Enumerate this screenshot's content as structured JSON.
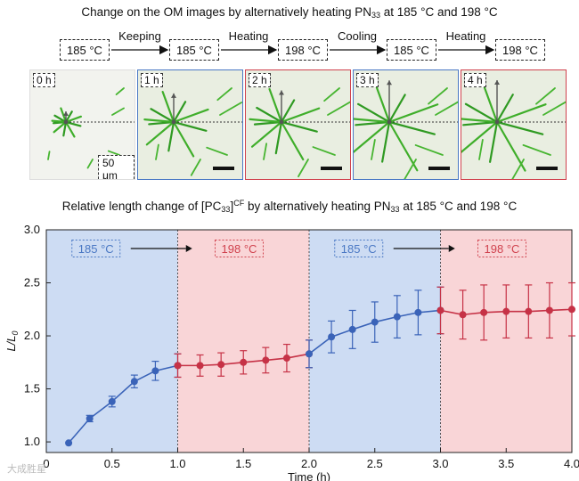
{
  "top_title": {
    "prefix": "Change on the OM images by alternatively heating PN",
    "sub": "33",
    "suffix": " at 185 °C and 198 °C"
  },
  "process_steps": {
    "boxes": [
      {
        "label": "185 °C",
        "color": "#222222"
      },
      {
        "label": "185 °C",
        "color": "#4a78c4"
      },
      {
        "label": "198 °C",
        "color": "#d0424e"
      },
      {
        "label": "185 °C",
        "color": "#4a78c4"
      },
      {
        "label": "198 °C",
        "color": "#d0424e"
      }
    ],
    "arrows": [
      "Keeping",
      "Heating",
      "Cooling",
      "Heating"
    ]
  },
  "om_images": {
    "panels": [
      {
        "time": "0 h",
        "border": "#dddddd",
        "growth": 0.0
      },
      {
        "time": "1 h",
        "border": "#4a78c4",
        "growth": 0.72
      },
      {
        "time": "2 h",
        "border": "#d0424e",
        "growth": 0.84
      },
      {
        "time": "3 h",
        "border": "#4a78c4",
        "growth": 1.24
      },
      {
        "time": "4 h",
        "border": "#d0424e",
        "growth": 1.25
      }
    ],
    "scale_bar": "50 μm"
  },
  "chart_title": {
    "prefix": "Relative length change of [PC",
    "sub": "33",
    "mid": "]",
    "sup": "CF",
    "suffix_a": " by alternatively heating PN",
    "sub2": "33",
    "suffix_b": " at 185 °C and 198 °C"
  },
  "chart_data": {
    "type": "scatter",
    "xlabel": "Time (h)",
    "ylabel": "L/L",
    "ylabel_sub": "0",
    "xlim": [
      0,
      4
    ],
    "ylim": [
      0.9,
      3.0
    ],
    "xticks": [
      "0",
      "0.5",
      "1.0",
      "1.5",
      "2.0",
      "2.5",
      "3.0",
      "3.5",
      "4.0"
    ],
    "yticks": [
      "1.0",
      "1.5",
      "2.0",
      "2.5",
      "3.0"
    ],
    "regions": [
      {
        "from": 0,
        "to": 1,
        "label": "185 °C",
        "color": "#4a78c4",
        "fill": "#cddcf3"
      },
      {
        "from": 1,
        "to": 2,
        "label": "198 °C",
        "color": "#d0424e",
        "fill": "#f9d5d7"
      },
      {
        "from": 2,
        "to": 3,
        "label": "185 °C",
        "color": "#4a78c4",
        "fill": "#cddcf3"
      },
      {
        "from": 3,
        "to": 4,
        "label": "198 °C",
        "color": "#d0424e",
        "fill": "#f9d5d7"
      }
    ],
    "series": [
      {
        "name": "185 °C (0–1 h)",
        "color": "#3a63b8",
        "x": [
          0.17,
          0.33,
          0.5,
          0.67,
          0.83,
          1.0
        ],
        "y": [
          0.99,
          1.22,
          1.38,
          1.57,
          1.67,
          1.72
        ],
        "err": [
          0.0,
          0.03,
          0.05,
          0.06,
          0.09,
          0.11
        ]
      },
      {
        "name": "198 °C (1–2 h)",
        "color": "#c63246",
        "x": [
          1.0,
          1.17,
          1.33,
          1.5,
          1.67,
          1.83,
          2.0
        ],
        "y": [
          1.72,
          1.72,
          1.73,
          1.75,
          1.77,
          1.79,
          1.83
        ],
        "err": [
          0.11,
          0.1,
          0.11,
          0.11,
          0.12,
          0.13,
          0.13
        ]
      },
      {
        "name": "185 °C (2–3 h)",
        "color": "#3a63b8",
        "x": [
          2.0,
          2.17,
          2.33,
          2.5,
          2.67,
          2.83,
          3.0
        ],
        "y": [
          1.83,
          1.99,
          2.06,
          2.13,
          2.18,
          2.22,
          2.24
        ],
        "err": [
          0.13,
          0.15,
          0.18,
          0.19,
          0.2,
          0.21,
          0.22
        ]
      },
      {
        "name": "198 °C (3–4 h)",
        "color": "#c63246",
        "x": [
          3.0,
          3.17,
          3.33,
          3.5,
          3.67,
          3.83,
          4.0
        ],
        "y": [
          2.24,
          2.2,
          2.22,
          2.23,
          2.23,
          2.24,
          2.25
        ],
        "err": [
          0.22,
          0.23,
          0.26,
          0.25,
          0.25,
          0.26,
          0.25
        ]
      }
    ]
  },
  "watermark": "大成胜星"
}
